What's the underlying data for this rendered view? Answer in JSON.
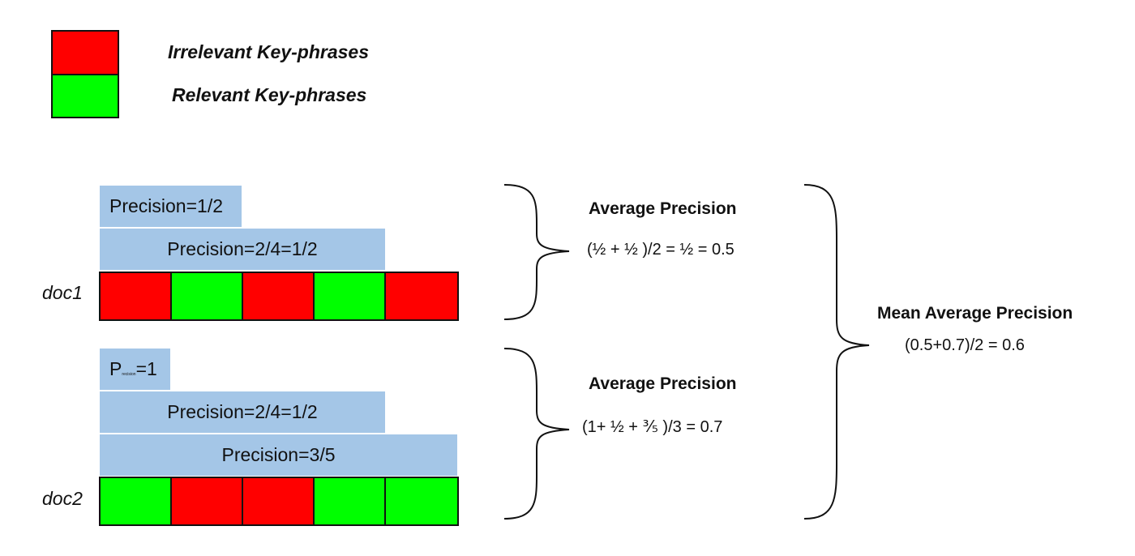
{
  "colors": {
    "irrelevant": "#ff0000",
    "relevant": "#00ff00",
    "precision_bar": "#a4c6e7"
  },
  "legend": {
    "irrelevant_label": "Irrelevant Key-phrases",
    "relevant_label": "Relevant Key-phrases"
  },
  "doc1": {
    "label": "doc1",
    "cells": [
      "irrelevant",
      "relevant",
      "irrelevant",
      "relevant",
      "irrelevant"
    ],
    "bars": [
      "Precision=1/2",
      "Precision=2/4=1/2"
    ],
    "ap_title": "Average Precision",
    "ap_formula": "(½ + ½ )/2 = ½ = 0.5"
  },
  "doc2": {
    "label": "doc2",
    "cells": [
      "relevant",
      "irrelevant",
      "irrelevant",
      "relevant",
      "relevant"
    ],
    "bar1_prefix": "P",
    "bar1_sub": "recision",
    "bar1_suffix": "=1",
    "bars": [
      "Precision=2/4=1/2",
      "Precision=3/5"
    ],
    "ap_title": "Average Precision",
    "ap_formula": "(1+ ½ + ⅗  )/3 = 0.7"
  },
  "map": {
    "title": "Mean Average Precision",
    "formula": "(0.5+0.7)/2 = 0.6"
  }
}
